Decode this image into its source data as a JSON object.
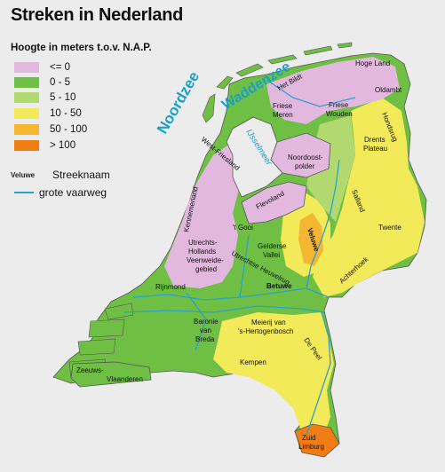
{
  "title": "Streken in Nederland",
  "legend": {
    "title": "Hoogte in meters t.o.v. N.A.P.",
    "items": [
      {
        "label": "<= 0",
        "color": "#e2b8df"
      },
      {
        "label": "0 - 5",
        "color": "#6fbf44"
      },
      {
        "label": "5 - 10",
        "color": "#b2d96f"
      },
      {
        "label": "10 - 50",
        "color": "#f3ea5a"
      },
      {
        "label": "50 - 100",
        "color": "#f5b631"
      },
      {
        "label": "> 100",
        "color": "#f07d14"
      }
    ],
    "region_example": "Veluwe",
    "region_label": "Streeknaam",
    "waterway_label": "grote vaarweg",
    "waterway_color": "#2aa2c9"
  },
  "seas": {
    "noordzee": "Noordzee",
    "waddenzee": "Waddenzee",
    "ijsselmeer": "IJsselmeer"
  },
  "regions": {
    "hogeland": "Hoge Land",
    "hetbildt": "Het Bildt",
    "oldambt": "Oldambt",
    "friesemeren1": "Friese",
    "friesemeren2": "Meren",
    "friesewouden1": "Friese",
    "friesewouden2": "Wouden",
    "hondsrug": "Hondsrug",
    "drents1": "Drents",
    "drents2": "Plateau",
    "westfriesland": "West-Friesland",
    "noordoostpolder1": "Noordoost-",
    "noordoostpolder2": "polder",
    "kennemerland": "Kennemerland",
    "flevoland": "Flevoland",
    "salland": "Salland",
    "twente": "Twente",
    "veluwe": "Veluwe",
    "hetgooi": "'t Gooi",
    "gelderse1": "Gelderse",
    "gelderse2": "Vallei",
    "utrechts1": "Utrechts-",
    "utrechts2": "Hollands",
    "utrechts3": "Veenweide-",
    "utrechts4": "gebied",
    "heuvelrug": "Utrechtse Heuvelrug",
    "achterhoek": "Achterhoek",
    "rijnmond": "Rijnmond",
    "betuwe": "Betuwe",
    "baronie1": "Baronie",
    "baronie2": "van",
    "baronie3": "Breda",
    "meierij1": "Meierij van",
    "meierij2": "'s-Hertogenbosch",
    "depeel": "De Peel",
    "kempen": "Kempen",
    "zeeuws1": "Zeeuws-",
    "zeeuws2": "Vlaanderen",
    "zuidlimburg1": "Zuid",
    "zuidlimburg2": "Limburg"
  }
}
